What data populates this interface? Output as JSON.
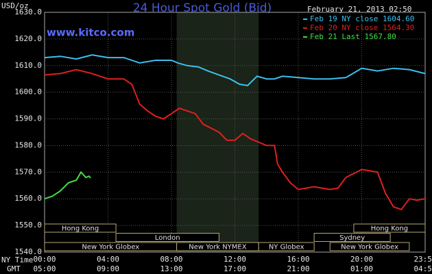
{
  "chart_data": {
    "type": "line",
    "title": "24 Hour Spot Gold (Bid)",
    "site": "www.kitco.com",
    "ylabel": "USD/oz",
    "timestamp": "February 21, 2013 02:50",
    "row_labels": [
      "NY Time",
      "GMT"
    ],
    "ylim": [
      1540,
      1630
    ],
    "yticks": [
      {
        "value": 1540,
        "label": "1540.0"
      },
      {
        "value": 1550,
        "label": "1550.0"
      },
      {
        "value": 1560,
        "label": "1560.0"
      },
      {
        "value": 1570,
        "label": "1570.0"
      },
      {
        "value": 1580,
        "label": "1580.0"
      },
      {
        "value": 1590,
        "label": "1590.0"
      },
      {
        "value": 1600,
        "label": "1600.0"
      },
      {
        "value": 1610,
        "label": "1610.0"
      },
      {
        "value": 1620,
        "label": "1620.0"
      },
      {
        "value": 1630,
        "label": "1630.0"
      }
    ],
    "xlim": [
      0,
      24
    ],
    "xticks": [
      {
        "value": 0,
        "label": "00:00"
      },
      {
        "value": 4,
        "label": "04:00"
      },
      {
        "value": 8,
        "label": "08:00"
      },
      {
        "value": 12,
        "label": "12:00"
      },
      {
        "value": 16,
        "label": "16:00"
      },
      {
        "value": 20,
        "label": "20:00"
      },
      {
        "value": 24,
        "label": "23:59"
      }
    ],
    "gmt_ticks": [
      {
        "value": 0,
        "label": "05:00"
      },
      {
        "value": 4,
        "label": "09:00"
      },
      {
        "value": 8,
        "label": "13:00"
      },
      {
        "value": 12,
        "label": "17:00"
      },
      {
        "value": 16,
        "label": "21:00"
      },
      {
        "value": 20,
        "label": "01:00"
      },
      {
        "value": 24,
        "label": "04:59"
      }
    ],
    "grid": true,
    "shaded_region": [
      8.33,
      13.5
    ],
    "sessions": [
      {
        "label": "Hong Kong",
        "start": 0,
        "end": 4.5,
        "row": 0
      },
      {
        "label": "Hong Kong",
        "start": 19.5,
        "end": 24,
        "row": 0
      },
      {
        "label": "London",
        "start": 4.5,
        "end": 11,
        "row": 1
      },
      {
        "label": "Sydney",
        "start": 17,
        "end": 21.8,
        "row": 1
      },
      {
        "label": "New York Globex",
        "start": 0,
        "end": 8.33,
        "row": 2
      },
      {
        "label": "New York NYMEX",
        "start": 8.33,
        "end": 13.5,
        "row": 2
      },
      {
        "label": "NY Globex",
        "start": 13.5,
        "end": 17,
        "row": 2
      },
      {
        "label": "New York Globex",
        "start": 18,
        "end": 23,
        "row": 2
      }
    ],
    "series": [
      {
        "name": "Feb 19 NY close 1604.60",
        "color": "#3cc0f0",
        "x": [
          0,
          1,
          2,
          3,
          4,
          5,
          6,
          7,
          8,
          8.4,
          9,
          9.7,
          10.3,
          11,
          11.7,
          12.3,
          12.8,
          13.4,
          14,
          14.5,
          15,
          16,
          17,
          18,
          19,
          20,
          21,
          22,
          23,
          24
        ],
        "values": [
          1613,
          1613.5,
          1612.5,
          1614,
          1613,
          1613,
          1611,
          1612,
          1612,
          1611,
          1610,
          1609.5,
          1608,
          1606.5,
          1605,
          1603,
          1602.5,
          1606,
          1605,
          1605,
          1606,
          1605.5,
          1605,
          1605,
          1605.5,
          1609,
          1608,
          1609,
          1608.5,
          1607
        ]
      },
      {
        "name": "Feb 20 NY close 1564.30",
        "color": "#e02020",
        "x": [
          0,
          1,
          2,
          3,
          4,
          5,
          5.5,
          6,
          6.5,
          7,
          7.5,
          8,
          8.5,
          9,
          9.5,
          10,
          11,
          11.5,
          12,
          12.5,
          13,
          14,
          14.5,
          14.7,
          15,
          15.5,
          16,
          17,
          18,
          18.5,
          19,
          20,
          21,
          21.5,
          22,
          22.5,
          23,
          23.5,
          24
        ],
        "values": [
          1606.5,
          1607,
          1608.5,
          1607,
          1605,
          1605,
          1603,
          1595.5,
          1593,
          1591,
          1590,
          1592,
          1594,
          1593,
          1592,
          1588,
          1585,
          1582,
          1582,
          1584.5,
          1582.5,
          1580,
          1580,
          1573,
          1570,
          1566,
          1563.5,
          1564.5,
          1563.5,
          1564,
          1568,
          1571,
          1570,
          1562,
          1557,
          1556,
          1560,
          1559.5,
          1560
        ]
      },
      {
        "name": "Feb 21 Last 1567.80",
        "color": "#40e040",
        "x": [
          0,
          0.5,
          1,
          1.5,
          2,
          2.3,
          2.6,
          2.8,
          2.9
        ],
        "values": [
          1560,
          1561,
          1563,
          1566,
          1567,
          1570,
          1568,
          1568.5,
          1567.8
        ]
      }
    ]
  }
}
